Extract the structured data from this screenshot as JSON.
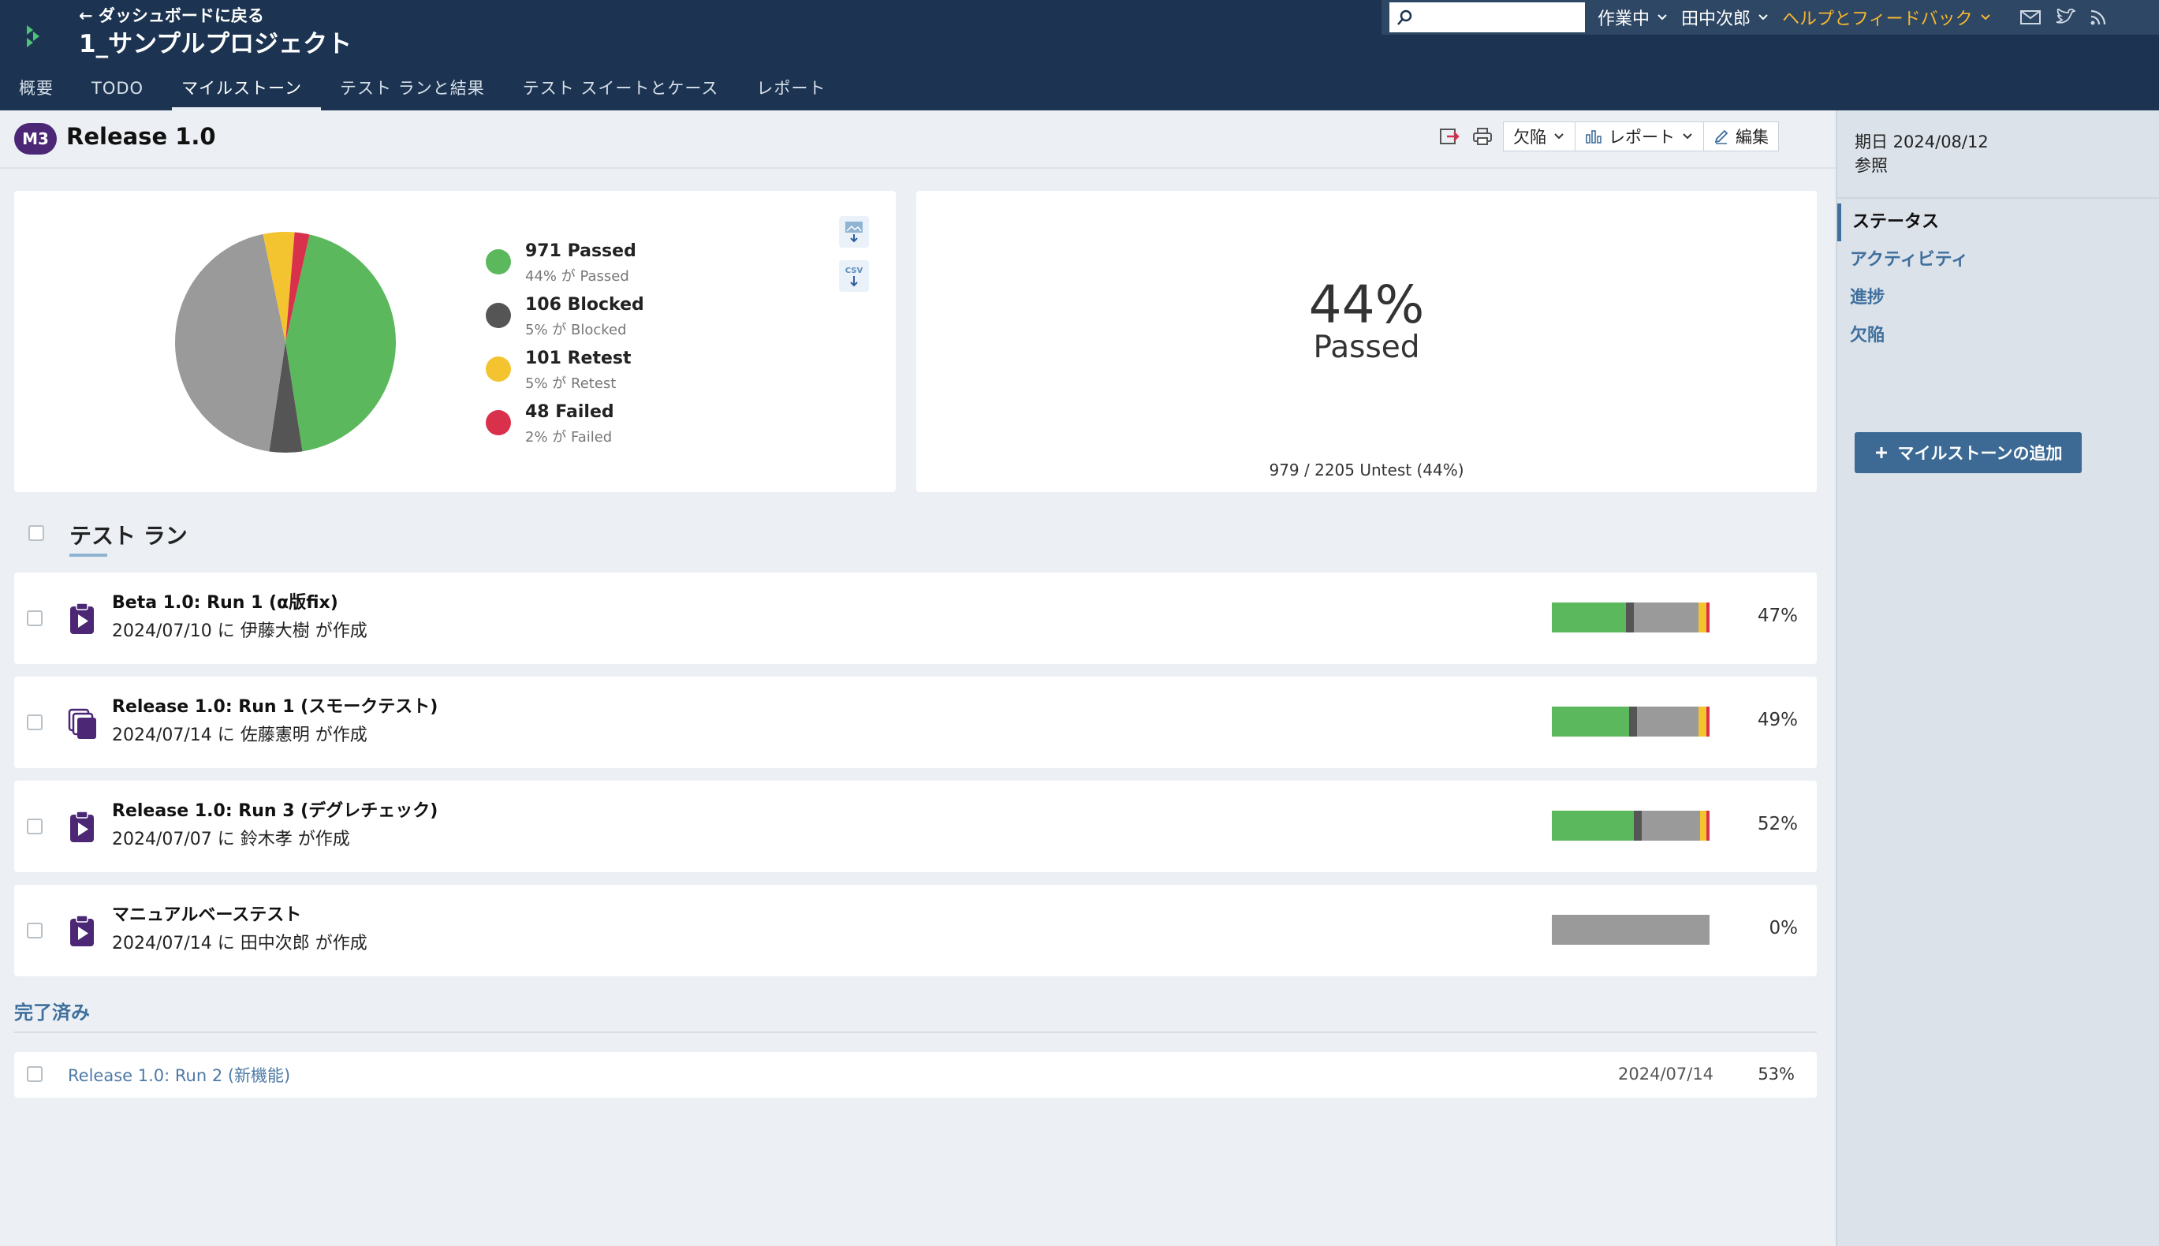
{
  "header": {
    "back_link": "← ダッシュボードに戻る",
    "project_title": "1_サンプルプロジェクト",
    "tabs": [
      "概要",
      "TODO",
      "マイルストーン",
      "テスト ランと結果",
      "テスト スイートとケース",
      "レポート"
    ],
    "active_tab": "マイルストーン",
    "search_placeholder": "",
    "status_dropdown": "作業中",
    "user_dropdown": "田中次郎",
    "help_dropdown": "ヘルプとフィードバック",
    "icons": [
      "mail-icon",
      "twitter-icon",
      "rss-icon"
    ]
  },
  "milestone": {
    "badge": "M3",
    "title": "Release 1.0",
    "toolbar": {
      "defects": "欠陥",
      "report": "レポート",
      "edit": "編集"
    }
  },
  "chart_data": {
    "type": "pie",
    "slices": [
      {
        "label": "Passed",
        "value": 971,
        "percent_text": "44% が Passed",
        "color": "#5cb85c"
      },
      {
        "label": "Blocked",
        "value": 106,
        "percent_text": "5% が Blocked",
        "color": "#555555"
      },
      {
        "label": "Untested",
        "value": 979,
        "color": "#9a9a9a"
      },
      {
        "label": "Retest",
        "value": 101,
        "percent_text": "5% が Retest",
        "color": "#f4c430"
      },
      {
        "label": "Failed",
        "value": 48,
        "percent_text": "2% が Failed",
        "color": "#d9304c"
      }
    ],
    "legend": [
      {
        "title": "971 Passed",
        "sub": "44% が Passed",
        "color": "#5cb85c"
      },
      {
        "title": "106 Blocked",
        "sub": "5% が Blocked",
        "color": "#555555"
      },
      {
        "title": "101 Retest",
        "sub": "5% が Retest",
        "color": "#f4c430"
      },
      {
        "title": "48 Failed",
        "sub": "2% が Failed",
        "color": "#d9304c"
      }
    ]
  },
  "summary": {
    "percent": "44%",
    "label": "Passed",
    "sub": "979 / 2205 Untest (44%)"
  },
  "runs_section": {
    "title": "テスト ラン",
    "runs": [
      {
        "name": "Beta 1.0: Run 1 (α版fix)",
        "meta": "2024/07/10 に 伊藤大樹 が作成",
        "pct": "47%",
        "icon": "run-clipboard-icon",
        "bar": {
          "passed": 0.47,
          "blocked": 0.05,
          "untested": 0.41,
          "retest": 0.05,
          "failed": 0.02
        }
      },
      {
        "name": "Release 1.0: Run 1 (スモークテスト)",
        "meta": "2024/07/14 に 佐藤憲明 が作成",
        "pct": "49%",
        "icon": "run-stack-icon",
        "bar": {
          "passed": 0.49,
          "blocked": 0.05,
          "untested": 0.39,
          "retest": 0.05,
          "failed": 0.02
        }
      },
      {
        "name": "Release 1.0: Run 3 (デグレチェック)",
        "meta": "2024/07/07 に 鈴木孝 が作成",
        "pct": "52%",
        "icon": "run-clipboard-icon",
        "bar": {
          "passed": 0.52,
          "blocked": 0.05,
          "untested": 0.37,
          "retest": 0.04,
          "failed": 0.02
        }
      },
      {
        "name": "マニュアルベーステスト",
        "meta": "2024/07/14 に 田中次郎 が作成",
        "pct": "0%",
        "icon": "run-clipboard-icon",
        "bar": {
          "passed": 0,
          "blocked": 0,
          "untested": 1,
          "retest": 0,
          "failed": 0
        }
      }
    ]
  },
  "completed": {
    "label": "完了済み",
    "items": [
      {
        "name": "Release 1.0: Run 2 (新機能)",
        "date": "2024/07/14",
        "pct": "53%"
      }
    ]
  },
  "sidebar": {
    "due": "期日 2024/08/12",
    "ref": "参照",
    "nav": [
      "ステータス",
      "アクティビティ",
      "進捗",
      "欠陥"
    ],
    "active_nav": "ステータス",
    "add_button": "マイルストーンの追加"
  },
  "colors": {
    "passed": "#5cb85c",
    "blocked": "#555555",
    "untested": "#9a9a9a",
    "retest": "#f4c430",
    "failed": "#d9304c",
    "header_bg": "#1c3451",
    "accent": "#3f6f9c",
    "badge": "#4b2776"
  }
}
